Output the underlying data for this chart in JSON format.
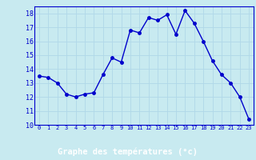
{
  "x": [
    0,
    1,
    2,
    3,
    4,
    5,
    6,
    7,
    8,
    9,
    10,
    11,
    12,
    13,
    14,
    15,
    16,
    17,
    18,
    19,
    20,
    21,
    22,
    23
  ],
  "y": [
    13.5,
    13.4,
    13.0,
    12.2,
    12.0,
    12.2,
    12.3,
    13.6,
    14.8,
    14.5,
    16.8,
    16.6,
    17.7,
    17.5,
    17.9,
    16.5,
    18.2,
    17.3,
    16.0,
    14.6,
    13.6,
    13.0,
    12.0,
    10.4
  ],
  "line_color": "#0000cc",
  "marker": "o",
  "markersize": 2.5,
  "linewidth": 1.0,
  "bg_color": "#c8eaf0",
  "grid_color": "#b0d8e8",
  "xlabel": "Graphe des températures (°c)",
  "xlabel_color": "#0000cc",
  "tick_color": "#0000cc",
  "axis_bottom_bg": "#0000aa",
  "ylim": [
    10,
    18.5
  ],
  "xlim": [
    -0.5,
    23.5
  ],
  "yticks": [
    10,
    11,
    12,
    13,
    14,
    15,
    16,
    17,
    18
  ],
  "xticks": [
    0,
    1,
    2,
    3,
    4,
    5,
    6,
    7,
    8,
    9,
    10,
    11,
    12,
    13,
    14,
    15,
    16,
    17,
    18,
    19,
    20,
    21,
    22,
    23
  ],
  "xtick_fontsize": 5.0,
  "ytick_fontsize": 6.0,
  "xlabel_fontsize": 7.5
}
